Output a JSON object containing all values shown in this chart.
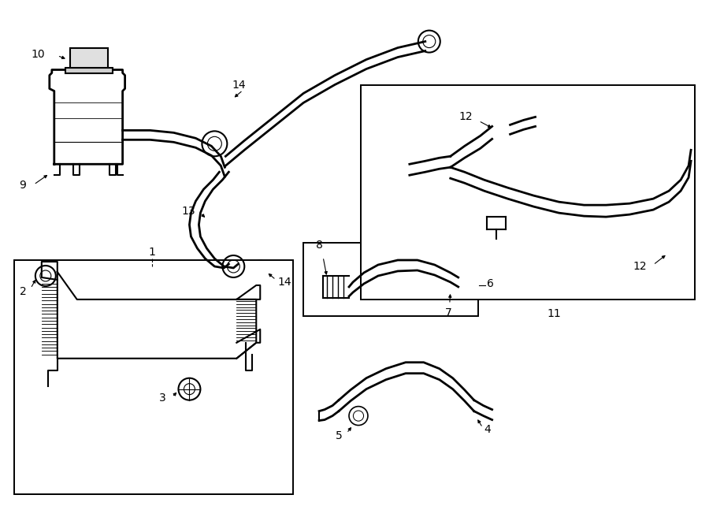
{
  "bg_color": "#ffffff",
  "line_color": "#000000",
  "fig_width": 9.0,
  "fig_height": 6.61,
  "dpi": 100,
  "boxes": {
    "radiator": [
      0.18,
      1.85,
      3.6,
      2.85
    ],
    "hose_small": [
      3.88,
      3.08,
      2.2,
      0.92
    ],
    "hose_large": [
      4.58,
      3.82,
      4.22,
      2.62
    ]
  }
}
